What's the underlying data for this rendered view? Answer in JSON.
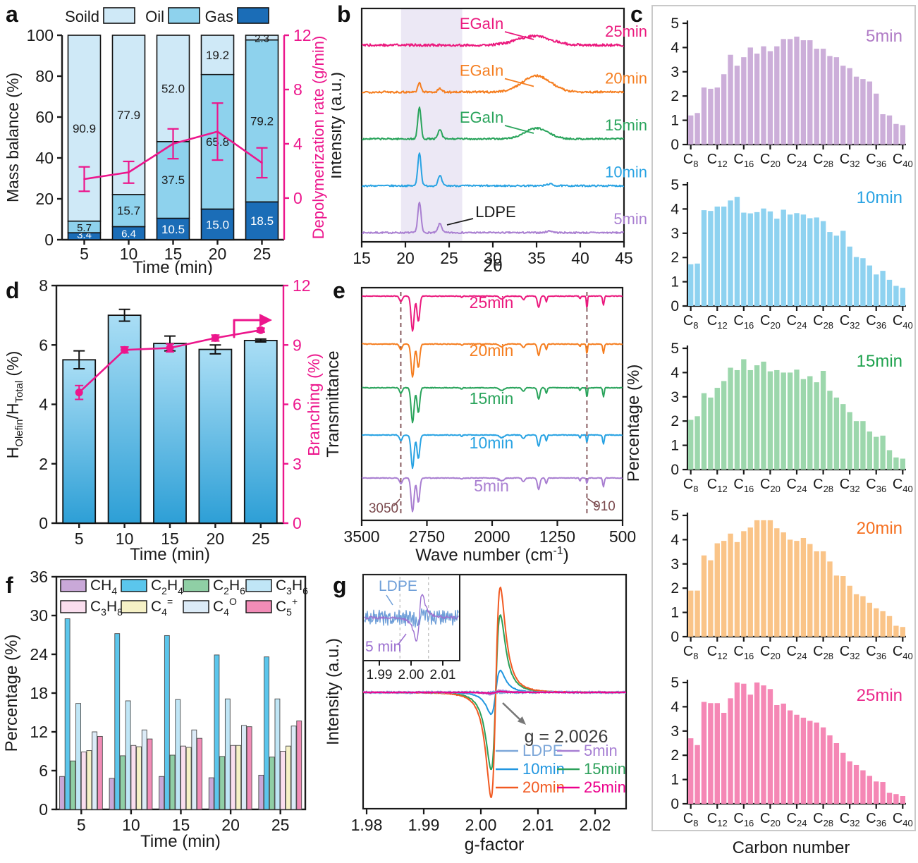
{
  "letters": {
    "a": "a",
    "b": "b",
    "c": "c",
    "d": "d",
    "e": "e",
    "f": "f",
    "g": "g"
  },
  "chart_data": [
    {
      "panel": "a",
      "type": "bar",
      "subtype": "stacked+line",
      "categories": [
        "5",
        "10",
        "15",
        "20",
        "25"
      ],
      "xlabel": "Time (min)",
      "ylabel": "Mass balance (%)",
      "ylim": [
        0,
        100
      ],
      "yticks": [
        "0",
        "20",
        "40",
        "60",
        "80",
        "100"
      ],
      "y2label": "Depolymerization rate (g/min)",
      "y2lim": [
        -3.07,
        12
      ],
      "y2ticks": [
        "0",
        "4",
        "8",
        "12"
      ],
      "legend": [
        "Soild",
        "Oil",
        "Gas"
      ],
      "series": [
        {
          "name": "Gas",
          "color": "#1b6db7",
          "label_color": "#ffffff",
          "values": [
            3.4,
            6.4,
            10.5,
            15.0,
            18.5
          ]
        },
        {
          "name": "Oil",
          "color": "#8ed2ed",
          "label_color": "#1a1a1a",
          "values": [
            5.7,
            15.7,
            37.5,
            65.8,
            79.2
          ]
        },
        {
          "name": "Soild",
          "color": "#cfe9f7",
          "label_color": "#1a1a1a",
          "values": [
            90.9,
            77.9,
            52.0,
            19.2,
            2.3
          ]
        }
      ],
      "line": {
        "name": "Depolymerization rate",
        "color": "#ec168c",
        "values": [
          1.4,
          1.9,
          4.0,
          4.9,
          2.6
        ],
        "errors": [
          0.9,
          0.8,
          1.1,
          2.1,
          1.1
        ]
      }
    },
    {
      "panel": "b",
      "type": "line",
      "subtype": "xrd",
      "xlabel": "2θ",
      "ylabel": "Intensity (a.u.)",
      "xlim": [
        15,
        45
      ],
      "xticks": [
        "15",
        "20",
        "25",
        "30",
        "35",
        "40",
        "45"
      ],
      "highlight_band": [
        19.5,
        26.5
      ],
      "band_color": "#ece8f5",
      "curves": [
        {
          "name": "5min",
          "color": "#a97fd1",
          "peak21": 43,
          "peak24": 13,
          "hump": [
            36.5,
            0.5,
            2.5
          ],
          "noise": 1.1
        },
        {
          "name": "10min",
          "color": "#29a3e3",
          "peak21": 47,
          "peak24": 14,
          "hump": [
            36.5,
            0.5,
            2.5
          ],
          "noise": 1.1
        },
        {
          "name": "15min",
          "color": "#2aa45c",
          "peak21": 45,
          "peak24": 13,
          "hump": [
            35.0,
            1.9,
            15
          ],
          "noise": 1.2
        },
        {
          "name": "20min",
          "color": "#f57e20",
          "peak21": 13,
          "peak24": 5,
          "hump": [
            35.0,
            2.3,
            23
          ],
          "noise": 1.4
        },
        {
          "name": "25min",
          "color": "#eb1a7e",
          "peak21": 0,
          "peak24": 0,
          "hump": [
            34.7,
            2.7,
            13
          ],
          "noise": 1.7
        }
      ],
      "egain_labels": [
        {
          "text": "EGaIn",
          "color": "#eb1a7e",
          "row": 4
        },
        {
          "text": "EGaIn",
          "color": "#f57e20",
          "row": 3
        },
        {
          "text": "EGaIn",
          "color": "#2aa45c",
          "row": 2
        }
      ],
      "ldpe_label": {
        "text": "LDPE",
        "color": "#1a1a1a",
        "row": 0
      }
    },
    {
      "panel": "c",
      "type": "bar",
      "subtype": "histogram-smallmultiples",
      "xlabel": "Carbon number",
      "ylabel": "Percentage (%)",
      "ylim": [
        0,
        5
      ],
      "yticks": [
        "0",
        "1",
        "2",
        "3",
        "4",
        "5"
      ],
      "carbon_start": 8,
      "xtick_carbons": [
        8,
        12,
        16,
        20,
        24,
        28,
        32,
        36,
        40
      ],
      "subplots": [
        {
          "name": "5min",
          "bar_color": "#ccaed9",
          "label_color": "#b07cc6",
          "values": [
            1.2,
            1.3,
            2.35,
            2.3,
            2.35,
            2.9,
            3.7,
            3.25,
            3.6,
            4.0,
            3.75,
            4.05,
            3.85,
            4.05,
            4.35,
            4.35,
            4.45,
            4.3,
            4.3,
            3.95,
            3.95,
            3.65,
            3.6,
            3.25,
            3.15,
            2.8,
            2.7,
            2.6,
            2.1,
            1.25,
            1.2,
            0.85,
            0.8
          ]
        },
        {
          "name": "10min",
          "bar_color": "#8ed2f0",
          "label_color": "#29a3e3",
          "values": [
            1.72,
            1.75,
            3.95,
            3.92,
            4.1,
            4.1,
            4.35,
            4.5,
            3.85,
            3.82,
            3.87,
            4.02,
            3.9,
            3.6,
            3.97,
            3.77,
            3.83,
            3.77,
            3.62,
            3.65,
            3.5,
            3.05,
            2.9,
            3.1,
            2.45,
            2.02,
            1.97,
            1.67,
            1.3,
            1.45,
            1.08,
            0.83,
            0.75
          ]
        },
        {
          "name": "15min",
          "bar_color": "#9cd7ac",
          "label_color": "#1fa24e",
          "values": [
            2.05,
            2.2,
            3.15,
            2.97,
            3.37,
            3.65,
            4.2,
            4.1,
            4.55,
            4.1,
            4.3,
            4.45,
            4.05,
            4.1,
            4.0,
            4.0,
            4.12,
            3.73,
            3.85,
            3.6,
            4.07,
            3.25,
            2.97,
            2.7,
            2.37,
            2.0,
            2.0,
            1.57,
            1.35,
            1.4,
            0.8,
            0.5,
            0.45
          ]
        },
        {
          "name": "20min",
          "bar_color": "#fac488",
          "label_color": "#f57020",
          "values": [
            1.9,
            1.9,
            3.35,
            3.15,
            3.85,
            3.95,
            4.25,
            3.9,
            4.35,
            4.5,
            4.8,
            4.8,
            4.8,
            4.47,
            4.3,
            4.0,
            3.95,
            4.07,
            3.82,
            3.52,
            3.52,
            3.1,
            2.52,
            2.5,
            2.1,
            1.75,
            1.67,
            1.4,
            1.17,
            1.05,
            0.85,
            0.45,
            0.4
          ]
        },
        {
          "name": "25min",
          "bar_color": "#f587b5",
          "label_color": "#eb2a8c",
          "values": [
            2.7,
            2.42,
            4.2,
            4.15,
            4.15,
            3.75,
            4.35,
            5.0,
            4.95,
            4.5,
            5.0,
            4.88,
            4.73,
            4.07,
            4.13,
            3.85,
            3.67,
            3.55,
            3.42,
            3.35,
            3.15,
            2.82,
            2.5,
            2.1,
            1.75,
            1.6,
            1.38,
            1.15,
            0.92,
            0.9,
            0.45,
            0.4,
            0.32
          ]
        }
      ]
    },
    {
      "panel": "d",
      "type": "bar",
      "subtype": "bar+line",
      "categories": [
        "5",
        "10",
        "15",
        "20",
        "25"
      ],
      "xlabel": "Time (min)",
      "ylabel_parts": [
        {
          "t": "H",
          "s": 0
        },
        {
          "t": "Olefin",
          "s": 1
        },
        {
          "t": "/H",
          "s": 0
        },
        {
          "t": "Total",
          "s": 1
        },
        {
          "t": " (%)",
          "s": 0
        }
      ],
      "ylim": [
        0,
        8
      ],
      "yticks": [
        "0",
        "2",
        "4",
        "6",
        "8"
      ],
      "y2label": "Branching (%)",
      "y2lim": [
        0,
        12
      ],
      "y2ticks": [
        "0",
        "3",
        "6",
        "9",
        "12"
      ],
      "bars": {
        "values": [
          5.5,
          7.0,
          6.05,
          5.85,
          6.15
        ],
        "errors": [
          0.3,
          0.2,
          0.25,
          0.15,
          0.05
        ],
        "gradient_top": "#aadef5",
        "gradient_bottom": "#2d9fd6"
      },
      "line": {
        "name": "Branching",
        "color": "#ec168c",
        "values": [
          6.6,
          8.75,
          8.85,
          9.35,
          9.75
        ],
        "errors": [
          0.35,
          0.15,
          0.2,
          0.15,
          0.1
        ]
      }
    },
    {
      "panel": "e",
      "type": "line",
      "subtype": "ftir",
      "xlabel_parts": [
        {
          "t": "Wave number (cm",
          "s": 0
        },
        {
          "t": "-1",
          "s": 2
        },
        {
          "t": ")",
          "s": 0
        }
      ],
      "ylabel": "Transmittance",
      "xlim": [
        3500,
        500
      ],
      "xticks": [
        "3500",
        "2750",
        "2000",
        "1250",
        "500"
      ],
      "dash_color": "#7b4a4e",
      "dashed_lines": [
        {
          "wn": 3050,
          "label": "3050"
        },
        {
          "wn": 910,
          "label": "910"
        }
      ],
      "curves": [
        {
          "name": "25min",
          "color": "#eb1a7e",
          "d1": 50,
          "d910": 18
        },
        {
          "name": "20min",
          "color": "#f57e20",
          "d1": 47,
          "d910": 15
        },
        {
          "name": "15min",
          "color": "#2aa45c",
          "d1": 49,
          "d910": 14
        },
        {
          "name": "10min",
          "color": "#29a3e3",
          "d1": 47,
          "d910": 11
        },
        {
          "name": "5min",
          "color": "#a97fd1",
          "d1": 48,
          "d910": 8
        }
      ]
    },
    {
      "panel": "f",
      "type": "bar",
      "subtype": "grouped",
      "categories": [
        "5",
        "10",
        "15",
        "20",
        "25"
      ],
      "xlabel": "Time (min)",
      "ylabel": "Percentage (%)",
      "ylim": [
        0,
        36
      ],
      "yticks": [
        "0",
        "6",
        "12",
        "18",
        "24",
        "30",
        "36"
      ],
      "series": [
        {
          "name": "CH4",
          "color": "#c9a8d8",
          "values": [
            5.1,
            4.8,
            5.1,
            4.9,
            5.3
          ]
        },
        {
          "name": "C2H4",
          "color": "#5bc6ec",
          "values": [
            29.5,
            27.2,
            26.9,
            23.9,
            23.6
          ]
        },
        {
          "name": "C2H6",
          "color": "#8fcfa5",
          "values": [
            7.5,
            8.3,
            8.4,
            8.2,
            8.1
          ]
        },
        {
          "name": "C3H6",
          "color": "#c0e6f6",
          "values": [
            16.4,
            16.8,
            17.0,
            17.1,
            17.1
          ]
        },
        {
          "name": "C3H8",
          "color": "#fadeee",
          "values": [
            8.9,
            9.9,
            9.8,
            9.9,
            9.0
          ]
        },
        {
          "name": "C4=",
          "color": "#f6f1c6",
          "values": [
            9.1,
            9.7,
            9.6,
            9.9,
            9.8
          ]
        },
        {
          "name": "C4O",
          "color": "#dcebf7",
          "values": [
            12.0,
            12.3,
            12.3,
            13.0,
            12.9
          ]
        },
        {
          "name": "C5+",
          "color": "#f28cb7",
          "values": [
            11.3,
            10.9,
            11.0,
            12.8,
            13.7
          ]
        }
      ]
    },
    {
      "panel": "g",
      "type": "line",
      "subtype": "epr",
      "xlabel": "g-factor",
      "ylabel": "Intensity (a.u.)",
      "xticks": [
        "1.98",
        "1.99",
        "2.00",
        "2.01",
        "2.02"
      ],
      "g_center": 2.0026,
      "annotation": "g = 2.0026",
      "curves": [
        {
          "name": "10min",
          "color": "#2196e0",
          "amp": 31,
          "noise": 0.5
        },
        {
          "name": "15min",
          "color": "#2ca05a",
          "amp": 110,
          "noise": 0.5
        },
        {
          "name": "20min",
          "color": "#f15a22",
          "amp": 149,
          "noise": 0.5
        },
        {
          "name": "LDPE",
          "color": "#7da7d9",
          "amp": 0,
          "noise": 1.6
        },
        {
          "name": "5min",
          "color": "#a77fd3",
          "amp": 3,
          "noise": 0.8
        },
        {
          "name": "25min",
          "color": "#ec008c",
          "amp": 1.2,
          "noise": 0.6
        }
      ],
      "legend_rows": [
        [
          "LDPE",
          "5min"
        ],
        [
          "10min",
          "15min"
        ],
        [
          "20min",
          "25min"
        ]
      ],
      "inset": {
        "xticks": [
          "1.99",
          "2.00",
          "2.01"
        ],
        "dashed_g": [
          1.9965,
          2.0055
        ],
        "curves": [
          {
            "name": "LDPE",
            "color": "#6f9fd8",
            "noise": 11,
            "amp": 4
          },
          {
            "name": "5 min",
            "color": "#9b6fd0",
            "noise": 2,
            "amp": 33
          }
        ]
      }
    }
  ]
}
